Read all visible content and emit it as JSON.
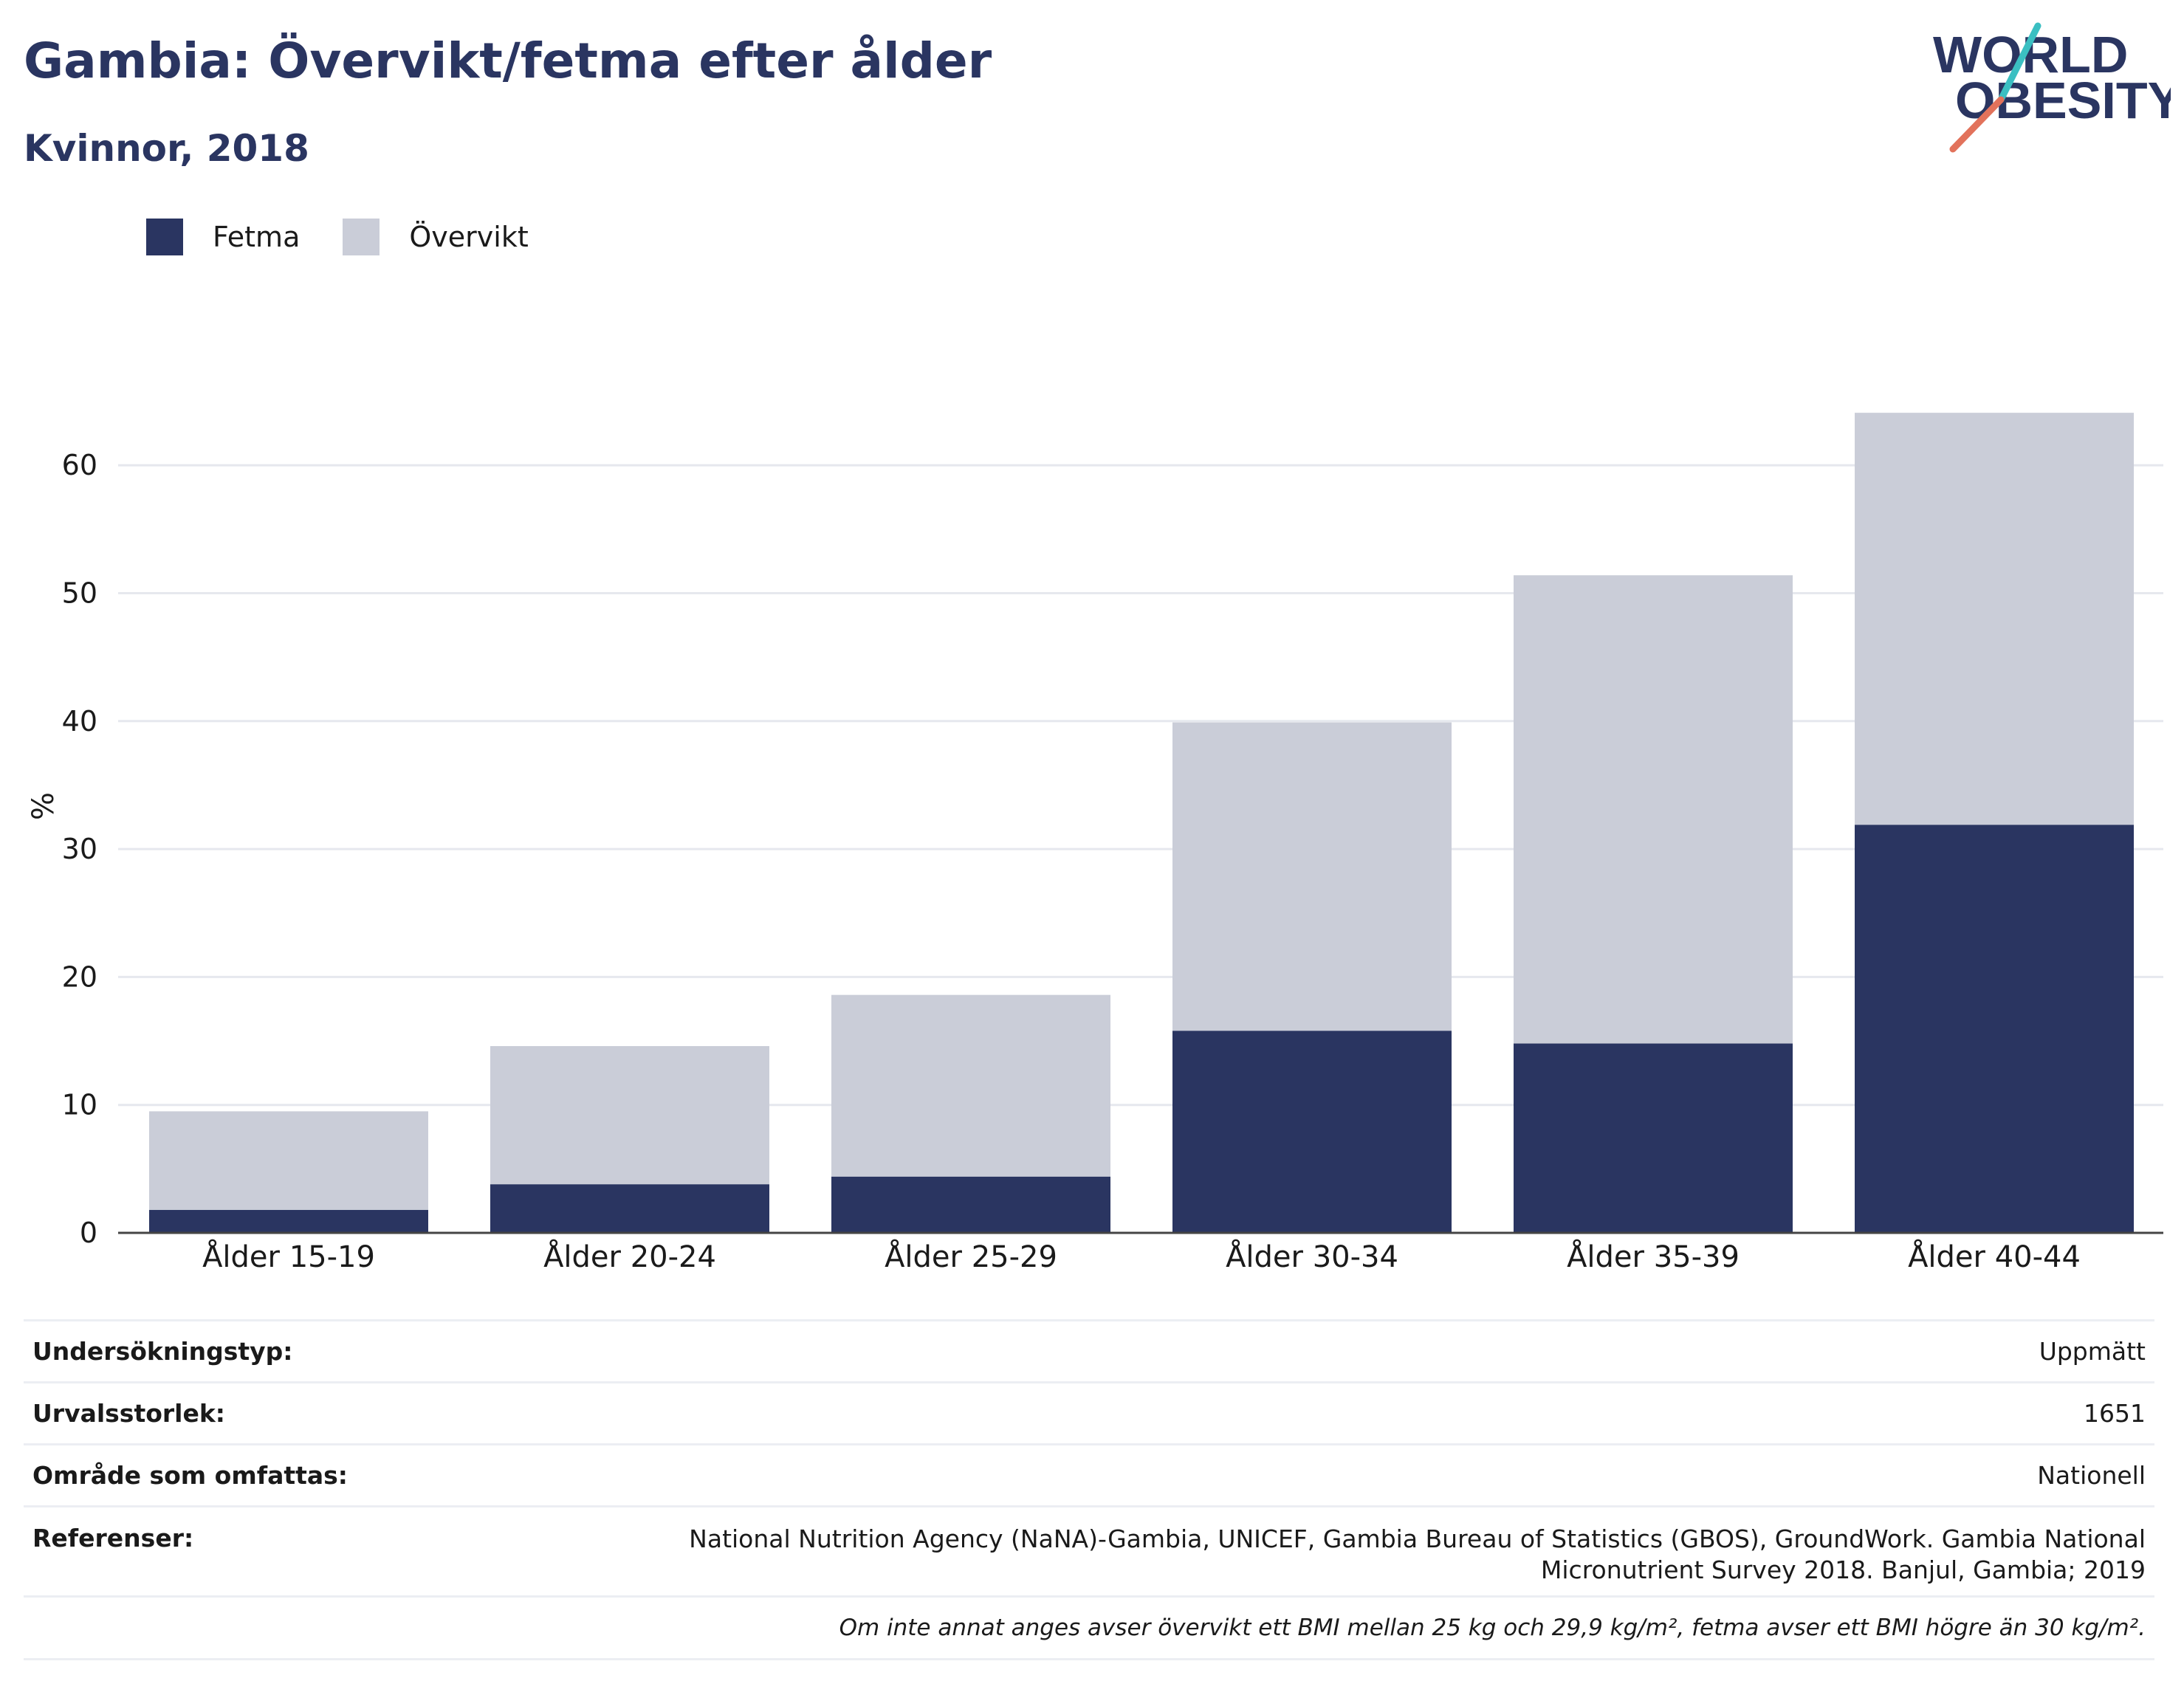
{
  "header": {
    "title": "Gambia: Övervikt/fetma efter ålder",
    "subtitle": "Kvinnor, 2018"
  },
  "logo": {
    "line1": "WORLD",
    "line2": "OBESITY"
  },
  "colors": {
    "fetma": "#2a3561",
    "overvikt": "#cacdd8",
    "title": "#2a3561",
    "logo_teal": "#3bbfc2",
    "logo_coral": "#e2725b",
    "grid": "#e6e8ee"
  },
  "chart_data": {
    "type": "bar",
    "stacked": true,
    "categories": [
      "Ålder 15-19",
      "Ålder 20-24",
      "Ålder 25-29",
      "Ålder 30-34",
      "Ålder 35-39",
      "Ålder 40-44"
    ],
    "series": [
      {
        "name": "Fetma",
        "values": [
          1.8,
          3.8,
          4.4,
          15.8,
          14.8,
          31.9
        ]
      },
      {
        "name": "Övervikt",
        "values": [
          7.7,
          10.8,
          14.2,
          24.1,
          36.6,
          32.2
        ]
      }
    ],
    "ylabel": "%",
    "ylim": [
      0,
      64
    ],
    "yticks": [
      0,
      10,
      20,
      30,
      40,
      50,
      60
    ],
    "grid": true,
    "legend_position": "top-left"
  },
  "meta": {
    "rows": [
      {
        "label": "Undersökningstyp:",
        "value": "Uppmätt"
      },
      {
        "label": "Urvalsstorlek:",
        "value": "1651"
      },
      {
        "label": "Område som omfattas:",
        "value": "Nationell"
      }
    ],
    "references_label": "Referenser:",
    "references_value": "National Nutrition Agency (NaNA)-Gambia, UNICEF, Gambia Bureau of Statistics (GBOS), GroundWork. Gambia National Micronutrient Survey 2018. Banjul, Gambia; 2019",
    "note": "Om inte annat anges avser övervikt ett BMI mellan 25 kg och 29,9 kg/m², fetma avser ett BMI högre än 30 kg/m²."
  }
}
